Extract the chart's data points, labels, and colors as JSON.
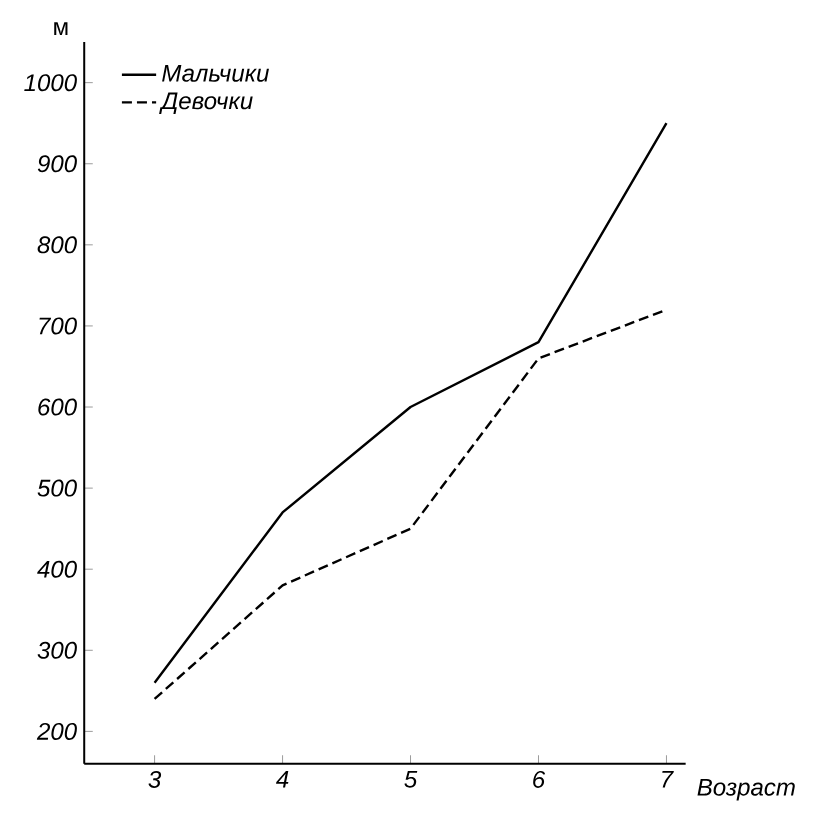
{
  "chart_data": {
    "type": "line",
    "ylabel": "м",
    "xlabel": "Возраст",
    "x": [
      3,
      4,
      5,
      6,
      7
    ],
    "series": [
      {
        "name": "Мальчики",
        "color": "#000000",
        "line_style": "solid",
        "values": [
          260,
          470,
          600,
          680,
          950
        ]
      },
      {
        "name": "Девочки",
        "color": "#000000",
        "line_style": "dashed",
        "values": [
          240,
          380,
          450,
          660,
          720
        ]
      }
    ],
    "xlim": [
      2.45,
      7.15
    ],
    "ylim": [
      160,
      1050
    ],
    "xticks": [
      3,
      4,
      5,
      6,
      7
    ],
    "yticks": [
      200,
      300,
      400,
      500,
      600,
      700,
      800,
      900,
      1000
    ],
    "legend": "top left",
    "grid": false
  }
}
